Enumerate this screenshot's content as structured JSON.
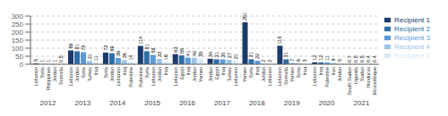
{
  "chart_data": {
    "type": "bar",
    "categories": [
      2012,
      2013,
      2014,
      2015,
      2016,
      2017,
      2018,
      2019,
      2020,
      2021
    ],
    "series": [
      {
        "name": "Recipient 1",
        "color": "#1a3a6b",
        "values": [
          5,
          86,
          73,
          114,
          63,
          34,
          261,
          115,
          12,
          0.7
        ],
        "labels": [
          "Lebanon",
          "Lebanon",
          "Syria",
          "Palestine",
          "Lebanon",
          "Jordan",
          "Yemen",
          "Lebanon",
          "Lebanon",
          "South Sudan"
        ]
      },
      {
        "name": "Recipient 2",
        "color": "#2e6da4",
        "values": [
          1,
          81,
          69,
          81,
          55,
          31,
          31,
          31,
          12,
          0.5
        ],
        "labels": [
          "Syria",
          "Jordan",
          "Jordan",
          "Syria",
          "Egypt",
          "Egypt",
          "Syria",
          "Somalia",
          "Iraq",
          "Uganda"
        ]
      },
      {
        "name": "Recipient 3",
        "color": "#5b9bd5",
        "values": [
          1,
          75,
          39,
          58,
          41,
          30,
          22,
          7,
          11,
          0.5
        ],
        "labels": [
          "Philippines",
          "Syria",
          "Lebanon",
          "Lebanon",
          "Iraq",
          "Iraq",
          "Iraq",
          "Yemen",
          "Palestine",
          "Sudan"
        ]
      },
      {
        "name": "Recipient 4",
        "color": "#9dc3e6",
        "values": [
          1,
          21,
          26,
          33,
          40,
          27,
          2,
          6,
          9,
          0.4
        ],
        "labels": [
          "Jordan",
          "Turkey",
          "Iraq",
          "Jordan",
          "Jordan",
          "Turkey",
          "Jordan",
          "Syria",
          "Iran",
          "Honduras"
        ]
      },
      {
        "name": "Recipient 5",
        "color": "#d6e8f5",
        "values": [
          0.5,
          11,
          14,
          16,
          35,
          21,
          2,
          3,
          5,
          0.4
        ],
        "labels": [
          "Somalia",
          "Iraq",
          "Palestine",
          "Iraq",
          "Yemen",
          "Lebanon",
          "Lebanon",
          "Iraq",
          "Jordan",
          "Mozambique"
        ]
      }
    ],
    "ylim": [
      0,
      300
    ],
    "yticks": [
      0,
      50,
      100,
      150,
      200,
      250,
      300
    ],
    "grid": true,
    "legend": "upper right",
    "data_labels": true
  }
}
